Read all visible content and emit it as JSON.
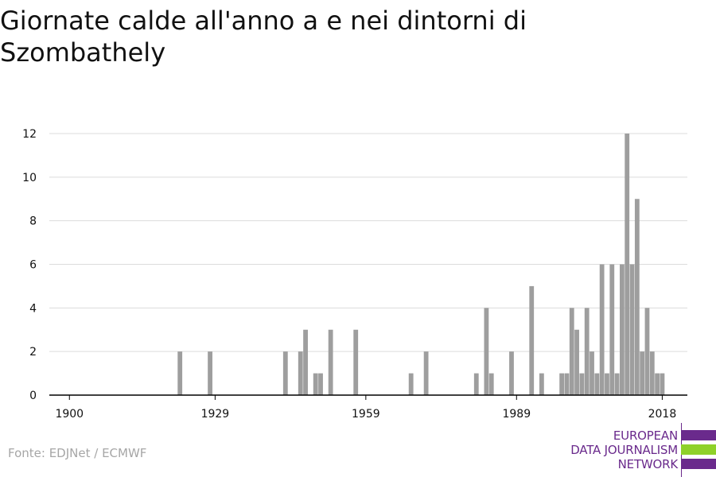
{
  "title": "Giornate calde all'anno a e nei dintorni di Szombathely",
  "source": "Fonte: EDJNet / ECMWF",
  "logo": {
    "line1": "EUROPEAN",
    "line2": "DATA JOURNALISM",
    "line3": "NETWORK",
    "colors": {
      "purple": "#6a2a8c",
      "green": "#8fd12a"
    }
  },
  "chart_data": {
    "type": "bar",
    "title": "Giornate calde all'anno a e nei dintorni di Szombathely",
    "xlabel": "",
    "ylabel": "",
    "xlim": [
      1896,
      2023
    ],
    "ylim": [
      0,
      12
    ],
    "x_ticks": [
      1900,
      1929,
      1959,
      1989,
      2018
    ],
    "y_ticks": [
      0,
      2,
      4,
      6,
      8,
      10,
      12
    ],
    "grid": "horizontal",
    "legend": "none",
    "bar_color": "#9e9e9e",
    "years": [
      1922,
      1928,
      1943,
      1946,
      1947,
      1949,
      1950,
      1952,
      1957,
      1968,
      1971,
      1981,
      1983,
      1984,
      1988,
      1992,
      1994,
      1998,
      1999,
      2000,
      2001,
      2002,
      2003,
      2004,
      2005,
      2006,
      2007,
      2008,
      2009,
      2010,
      2011,
      2012,
      2013,
      2014,
      2015,
      2016,
      2017,
      2018
    ],
    "values": [
      2,
      2,
      2,
      2,
      3,
      1,
      1,
      3,
      3,
      1,
      2,
      1,
      4,
      1,
      2,
      5,
      1,
      1,
      1,
      4,
      3,
      1,
      4,
      2,
      1,
      6,
      1,
      6,
      1,
      6,
      12,
      6,
      9,
      2,
      4,
      2,
      1,
      1
    ]
  }
}
